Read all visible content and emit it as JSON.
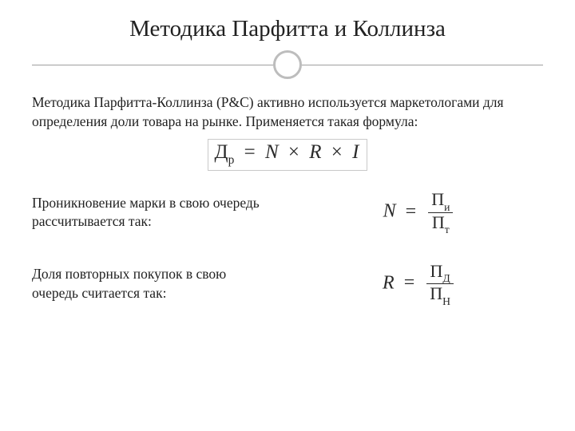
{
  "title": "Методика Парфитта и Коллинза",
  "intro": "Методика Парфитта-Коллинза (P&C) активно используется маркетологами для определения доли товара на рынке. Применяется такая формула:",
  "formula_main": {
    "lhs_base": "Д",
    "lhs_sub": "р",
    "eq": "=",
    "r1": "N",
    "op": "×",
    "r2": "R",
    "r3": "I"
  },
  "row1": {
    "text": "Проникновение марки в свою очередь рассчитывается так:",
    "lhs": "N",
    "eq": "=",
    "num_base": "П",
    "num_sub": "и",
    "den_base": "П",
    "den_sub": "т"
  },
  "row2": {
    "text": "Доля повторных покупок в свою очередь считается так:",
    "lhs": "R",
    "eq": "=",
    "num_base": "П",
    "num_sub": "Д",
    "den_base": "П",
    "den_sub": "Н"
  },
  "style": {
    "font_family": "Georgia",
    "title_fontsize": 29,
    "body_fontsize": 17.5,
    "math_fontsize": 24,
    "text_color": "#212121",
    "math_color": "#2a2a2a",
    "divider_line_color": "#9e9e9e",
    "divider_circle_border": "#bdbdbd",
    "formula_border_color": "#c9c9c9",
    "background": "#ffffff"
  }
}
